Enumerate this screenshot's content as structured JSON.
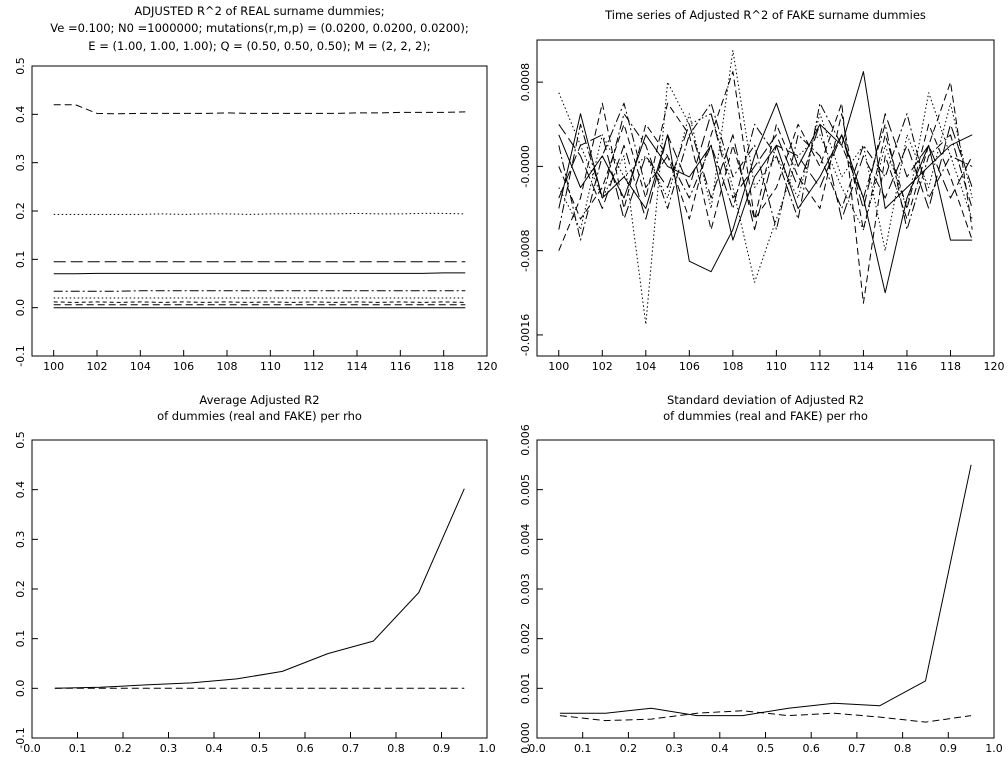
{
  "chart_data": [
    {
      "id": "p1",
      "type": "line",
      "title_lines": [
        "ADJUSTED R^2 of REAL surname dummies;",
        "Ve =0.100; N0 =1000000; mutations(r,m,p) = (0.0200, 0.0200, 0.0200);",
        "E = (1.00, 1.00, 1.00); Q = (0.50, 0.50, 0.50); M = (2, 2, 2);"
      ],
      "xlim": [
        99,
        120
      ],
      "ylim": [
        -0.1,
        0.5
      ],
      "xticks": [
        100,
        102,
        104,
        106,
        108,
        110,
        112,
        114,
        116,
        118,
        120
      ],
      "xtick_labels": [
        "100",
        "102",
        "104",
        "106",
        "108",
        "110",
        "112",
        "114",
        "116",
        "118",
        "120"
      ],
      "yticks": [
        -0.1,
        0.0,
        0.1,
        0.2,
        0.3,
        0.4,
        0.5
      ],
      "ytick_labels": [
        "-0.1",
        "0.0",
        "0.1",
        "0.2",
        "0.3",
        "0.4",
        "0.5"
      ],
      "x": [
        100,
        101,
        102,
        103,
        104,
        105,
        106,
        107,
        108,
        109,
        110,
        111,
        112,
        113,
        114,
        115,
        116,
        117,
        118,
        119
      ],
      "series": [
        {
          "style": "dashed",
          "values": [
            0.42,
            0.42,
            0.402,
            0.401,
            0.402,
            0.402,
            0.402,
            0.402,
            0.403,
            0.402,
            0.402,
            0.402,
            0.402,
            0.402,
            0.403,
            0.403,
            0.404,
            0.404,
            0.404,
            0.405
          ]
        },
        {
          "style": "dotted",
          "values": [
            0.193,
            0.193,
            0.193,
            0.193,
            0.193,
            0.194,
            0.193,
            0.194,
            0.194,
            0.193,
            0.194,
            0.194,
            0.194,
            0.194,
            0.195,
            0.194,
            0.194,
            0.195,
            0.195,
            0.194
          ]
        },
        {
          "style": "longdash",
          "values": [
            0.095,
            0.095,
            0.095,
            0.095,
            0.095,
            0.095,
            0.095,
            0.095,
            0.095,
            0.095,
            0.095,
            0.095,
            0.095,
            0.095,
            0.095,
            0.095,
            0.095,
            0.095,
            0.095,
            0.095
          ]
        },
        {
          "style": "solid",
          "values": [
            0.07,
            0.07,
            0.071,
            0.071,
            0.071,
            0.071,
            0.071,
            0.071,
            0.071,
            0.071,
            0.071,
            0.071,
            0.071,
            0.071,
            0.071,
            0.071,
            0.071,
            0.071,
            0.072,
            0.072
          ]
        },
        {
          "style": "dashdot",
          "values": [
            0.034,
            0.034,
            0.034,
            0.034,
            0.035,
            0.035,
            0.035,
            0.035,
            0.035,
            0.035,
            0.035,
            0.035,
            0.035,
            0.035,
            0.035,
            0.035,
            0.035,
            0.035,
            0.035,
            0.035
          ]
        },
        {
          "style": "dotted",
          "values": [
            0.02,
            0.02,
            0.02,
            0.02,
            0.02,
            0.02,
            0.02,
            0.02,
            0.02,
            0.02,
            0.02,
            0.02,
            0.02,
            0.02,
            0.02,
            0.02,
            0.02,
            0.02,
            0.02,
            0.02
          ]
        },
        {
          "style": "shortdash",
          "values": [
            0.012,
            0.011,
            0.012,
            0.011,
            0.012,
            0.011,
            0.012,
            0.011,
            0.012,
            0.011,
            0.012,
            0.011,
            0.012,
            0.011,
            0.012,
            0.011,
            0.012,
            0.011,
            0.012,
            0.011
          ]
        },
        {
          "style": "dashed",
          "values": [
            0.006,
            0.006,
            0.006,
            0.006,
            0.006,
            0.006,
            0.006,
            0.006,
            0.006,
            0.006,
            0.006,
            0.006,
            0.006,
            0.006,
            0.006,
            0.006,
            0.006,
            0.006,
            0.006,
            0.006
          ]
        },
        {
          "style": "solid",
          "values": [
            0.0,
            0.0,
            0.0,
            0.0,
            0.0,
            0.0,
            0.0,
            0.0,
            0.0,
            0.0,
            0.0,
            0.0,
            0.0,
            0.0,
            0.0,
            0.0,
            0.0,
            0.0,
            0.0,
            0.0
          ]
        }
      ]
    },
    {
      "id": "p2",
      "type": "line",
      "title_lines": [
        "Time series of Adjusted R^2 of FAKE surname dummies"
      ],
      "xlim": [
        99,
        120
      ],
      "ylim": [
        -0.0018,
        0.0012
      ],
      "xticks": [
        100,
        102,
        104,
        106,
        108,
        110,
        112,
        114,
        116,
        118,
        120
      ],
      "xtick_labels": [
        "100",
        "102",
        "104",
        "106",
        "108",
        "110",
        "112",
        "114",
        "116",
        "118",
        "120"
      ],
      "yticks": [
        -0.0016,
        -0.0008,
        0.0,
        0.0008
      ],
      "ytick_labels": [
        "-0.0016",
        "-0.0008",
        "-0.0000",
        "0.0008"
      ],
      "x": [
        100,
        101,
        102,
        103,
        104,
        105,
        106,
        107,
        108,
        109,
        110,
        111,
        112,
        113,
        114,
        115,
        116,
        117,
        118,
        119
      ],
      "series": [
        {
          "style": "solid",
          "values": [
            -0.0004,
            0.0005,
            -0.0003,
            -0.0001,
            -0.0004,
            0.0003,
            -0.0009,
            -0.001,
            -0.0006,
            0.0001,
            0.0006,
            0.0,
            0.0004,
            0.0002,
            0.0009,
            -0.0004,
            -0.0002,
            0.0,
            0.0002,
            0.0003
          ]
        },
        {
          "style": "solid",
          "values": [
            0.0003,
            -0.0002,
            0.0001,
            -0.0003,
            0.0003,
            0.0,
            -0.0001,
            0.0002,
            -0.0007,
            -0.0001,
            0.0002,
            -0.0004,
            -0.0001,
            0.0003,
            -0.0003,
            -0.0012,
            -0.0003,
            0.0002,
            -0.0007,
            -0.0007
          ]
        },
        {
          "style": "dotted",
          "values": [
            0.0007,
            0.0002,
            -0.0003,
            0.0001,
            -0.0015,
            0.0008,
            0.0004,
            0.0005,
            -0.0002,
            -0.0011,
            -0.0005,
            0.0001,
            0.0003,
            -0.0002,
            -0.0006,
            0.0002,
            -0.0004,
            0.0007,
            0.0001,
            -0.0005
          ]
        },
        {
          "style": "dotted",
          "values": [
            -0.0002,
            -0.0006,
            0.0003,
            -0.0001,
            0.0001,
            -0.0003,
            0.0005,
            -0.0004,
            0.0011,
            -0.0002,
            0.0001,
            -0.0003,
            0.0005,
            -0.0001,
            0.0002,
            -0.0008,
            0.0003,
            -0.0002,
            0.0006,
            -0.0003
          ]
        },
        {
          "style": "dashed",
          "values": [
            -0.0008,
            -0.0003,
            0.0006,
            -0.0004,
            0.0004,
            0.0001,
            -0.0005,
            0.0003,
            0.0009,
            -0.0005,
            -0.0002,
            0.0004,
            0.0,
            0.0006,
            -0.0013,
            0.0001,
            -0.0005,
            0.0002,
            0.0008,
            -0.0006
          ]
        },
        {
          "style": "dashed",
          "values": [
            0.0,
            -0.0005,
            -0.0002,
            0.0004,
            -0.0003,
            0.0006,
            0.0003,
            -0.0006,
            0.0002,
            -0.0005,
            0.0004,
            -0.0001,
            -0.0004,
            0.0005,
            -0.0006,
            0.0003,
            -0.0004,
            0.0004,
            -0.0001,
            -0.0007
          ]
        },
        {
          "style": "dashdot",
          "values": [
            -0.0006,
            0.0004,
            -0.0003,
            0.0005,
            0.0002,
            -0.0004,
            0.0003,
            0.0006,
            -0.0001,
            0.0002,
            -0.0006,
            0.0003,
            0.0001,
            -0.0004,
            0.0002,
            -0.0001,
            0.0005,
            -0.0003,
            0.0001,
            0.0
          ]
        },
        {
          "style": "dashdot",
          "values": [
            0.0002,
            -0.0007,
            0.0001,
            0.0006,
            -0.0002,
            0.0001,
            -0.0003,
            0.0002,
            -0.0004,
            0.0004,
            0.0001,
            -0.0005,
            0.0006,
            0.0002,
            -0.0003,
            0.0004,
            -0.0006,
            0.0001,
            0.0003,
            -0.0004
          ]
        },
        {
          "style": "longdash",
          "values": [
            0.0004,
            0.0001,
            -0.0004,
            0.0002,
            -0.0005,
            0.0003,
            -0.0002,
            0.0005,
            -0.0003,
            0.0,
            0.0003,
            -0.0002,
            0.0004,
            -0.0005,
            0.0001,
            -0.0003,
            0.0002,
            -0.0004,
            0.0004,
            -0.0002
          ]
        },
        {
          "style": "longdash",
          "values": [
            -0.0003,
            0.0002,
            0.0003,
            -0.0005,
            0.0001,
            -0.0002,
            0.0004,
            -0.0003,
            0.0003,
            -0.0006,
            0.0002,
            0.0001,
            -0.0002,
            0.0003,
            -0.0004,
            0.0005,
            -0.0001,
            0.0002,
            -0.0003,
            0.0001
          ]
        }
      ]
    },
    {
      "id": "p3",
      "type": "line",
      "title_lines": [
        "Average Adjusted R2",
        "of dummies (real and FAKE) per rho"
      ],
      "xlim": [
        0.0,
        1.0
      ],
      "ylim": [
        -0.1,
        0.5
      ],
      "xticks": [
        0.0,
        0.1,
        0.2,
        0.3,
        0.4,
        0.5,
        0.6,
        0.7,
        0.8,
        0.9,
        1.0
      ],
      "xtick_labels": [
        "0.0",
        "0.1",
        "0.2",
        "0.3",
        "0.4",
        "0.5",
        "0.6",
        "0.7",
        "0.8",
        "0.9",
        "1.0"
      ],
      "yticks": [
        -0.1,
        0.0,
        0.1,
        0.2,
        0.3,
        0.4,
        0.5
      ],
      "ytick_labels": [
        "-0.1",
        "0.0",
        "0.1",
        "0.2",
        "0.3",
        "0.4",
        "0.5"
      ],
      "x": [
        0.05,
        0.15,
        0.25,
        0.35,
        0.45,
        0.55,
        0.65,
        0.75,
        0.85,
        0.95
      ],
      "series": [
        {
          "style": "solid",
          "values": [
            0.0,
            0.002,
            0.007,
            0.011,
            0.019,
            0.034,
            0.07,
            0.095,
            0.193,
            0.402
          ]
        },
        {
          "style": "dashed",
          "values": [
            0.0,
            0.0,
            0.0,
            0.0,
            0.0,
            0.0,
            0.0,
            0.0,
            0.0,
            0.0
          ]
        }
      ]
    },
    {
      "id": "p4",
      "type": "line",
      "title_lines": [
        "Standard deviation of Adjusted R2",
        "of dummies (real and FAKE) per rho"
      ],
      "xlim": [
        0.0,
        1.0
      ],
      "ylim": [
        0.0,
        0.006
      ],
      "xticks": [
        0.0,
        0.1,
        0.2,
        0.3,
        0.4,
        0.5,
        0.6,
        0.7,
        0.8,
        0.9,
        1.0
      ],
      "xtick_labels": [
        "0.0",
        "0.1",
        "0.2",
        "0.3",
        "0.4",
        "0.5",
        "0.6",
        "0.7",
        "0.8",
        "0.9",
        "1.0"
      ],
      "yticks": [
        0.0,
        0.001,
        0.002,
        0.003,
        0.004,
        0.005,
        0.006
      ],
      "ytick_labels": [
        "0.000",
        "0.001",
        "0.002",
        "0.003",
        "0.004",
        "0.005",
        "0.006"
      ],
      "x": [
        0.05,
        0.15,
        0.25,
        0.35,
        0.45,
        0.55,
        0.65,
        0.75,
        0.85,
        0.95
      ],
      "series": [
        {
          "style": "solid",
          "values": [
            0.0005,
            0.0005,
            0.0006,
            0.00045,
            0.00045,
            0.0006,
            0.0007,
            0.00065,
            0.00115,
            0.0055
          ]
        },
        {
          "style": "dashed",
          "values": [
            0.00045,
            0.00035,
            0.00038,
            0.0005,
            0.00055,
            0.00045,
            0.0005,
            0.00042,
            0.00032,
            0.00045
          ]
        }
      ]
    }
  ]
}
